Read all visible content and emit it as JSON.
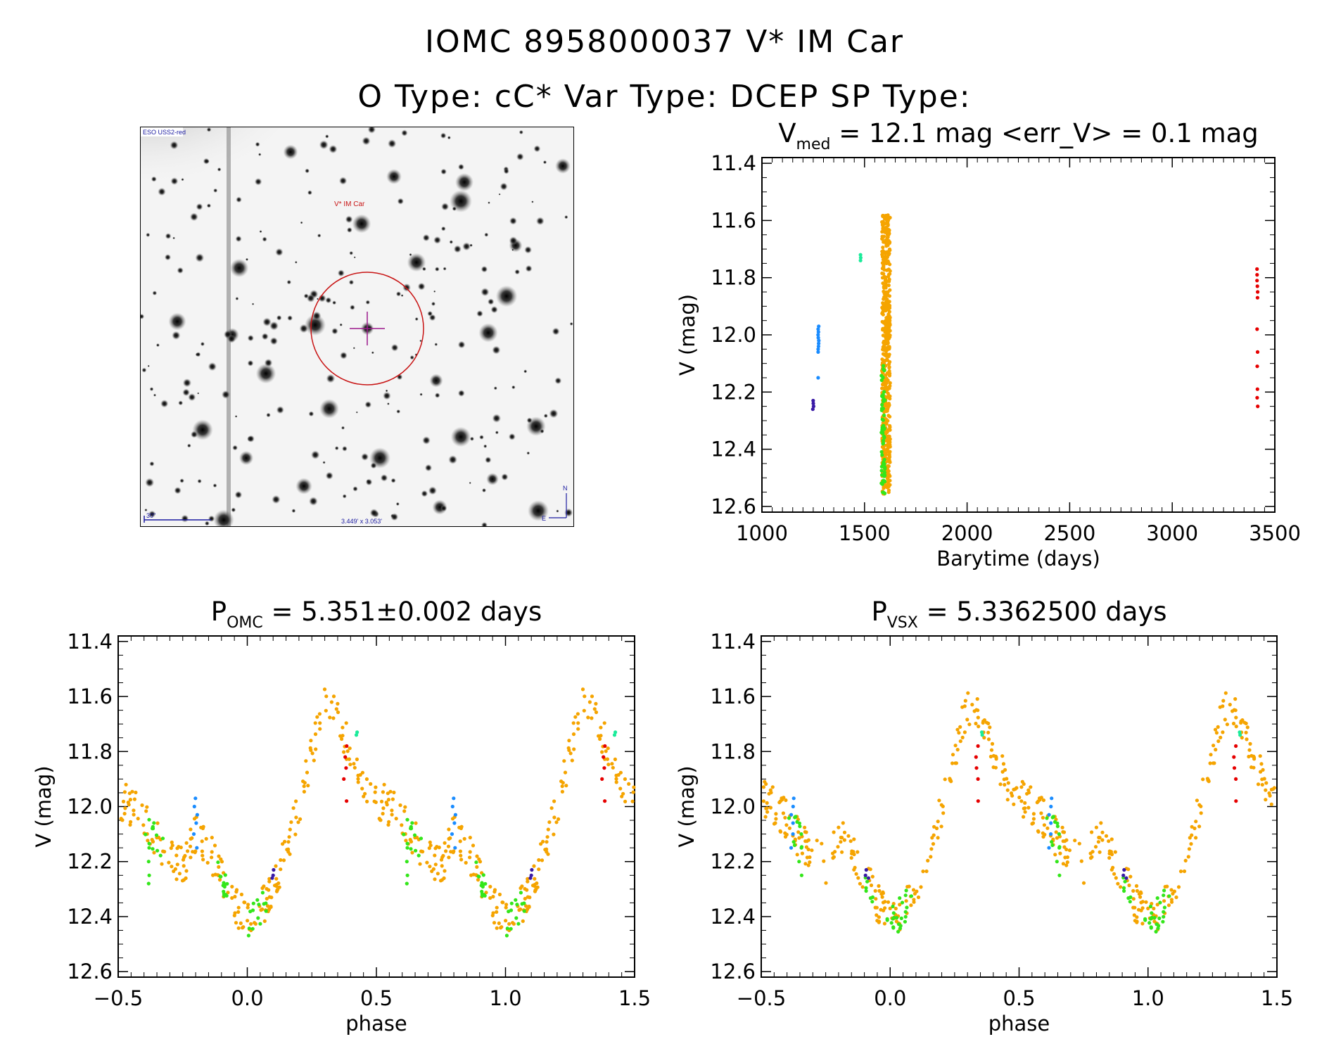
{
  "header": {
    "line1": "IOMC 8958000037   V* IM Car",
    "line2": "O Type: cC*  Var Type: DCEP  SP Type:"
  },
  "finding_chart": {
    "survey_label": "ESO USS2-red",
    "object_label": "V* IM Car",
    "scale_label": "30\"",
    "size_label": "3.449' x 3.053'",
    "north_label": "N",
    "east_label": "E"
  },
  "colors": {
    "orange": "#f5a400",
    "green": "#33e61a",
    "blue": "#1a8cff",
    "red": "#e60000",
    "purple": "#3a1aa6",
    "cyan": "#1aeb9a",
    "circle": "#c81414",
    "crosshair": "#9b1a8c"
  },
  "chart_data": [
    {
      "type": "scatter",
      "title_parts": {
        "p": "V",
        "sub": "med",
        "rest": " = 12.1 mag <err_V> = 0.1 mag"
      },
      "xlabel": "Barytime (days)",
      "ylabel": "V (mag)",
      "xlim": [
        1000,
        3500
      ],
      "ylim": [
        12.62,
        11.38
      ],
      "xticks": [
        1000,
        1500,
        2000,
        2500,
        3000,
        3500
      ],
      "yticks": [
        11.4,
        11.6,
        11.8,
        12.0,
        12.2,
        12.4,
        12.6
      ],
      "grid": false,
      "series": [
        {
          "color": "blue",
          "x": 1275,
          "y": [
            11.97,
            11.98,
            11.99,
            12.0,
            12.01,
            12.02,
            12.03,
            12.04,
            12.05,
            12.06,
            12.15
          ]
        },
        {
          "color": "purple",
          "x": 1250,
          "y": [
            12.23,
            12.24,
            12.25,
            12.26
          ]
        },
        {
          "color": "cyan",
          "x": 1480,
          "y": [
            11.72,
            11.73,
            11.74
          ]
        },
        {
          "color": "red",
          "x": 3415,
          "y": [
            11.77,
            11.79,
            11.81,
            11.83,
            11.85,
            11.87,
            11.98,
            12.06,
            12.11,
            12.19,
            12.22,
            12.25
          ]
        }
      ],
      "band_orange": {
        "x": [
          1585,
          1625
        ],
        "y": [
          11.58,
          12.56
        ]
      },
      "band_green": {
        "x": [
          1582,
          1600
        ],
        "y": [
          12.1,
          12.58
        ]
      }
    },
    {
      "type": "scatter",
      "title_parts": {
        "p": "P",
        "sub": "OMC",
        "rest": " = 5.351±0.002 days"
      },
      "xlabel": "phase",
      "ylabel": "V (mag)",
      "xlim": [
        -0.5,
        1.5
      ],
      "ylim": [
        12.62,
        11.38
      ],
      "xticks": [
        -0.5,
        0.0,
        0.5,
        1.0,
        1.5
      ],
      "xticklabels": [
        "-0.5",
        "0.0",
        "0.5",
        "1.0",
        "1.5"
      ],
      "yticks": [
        11.4,
        11.6,
        11.8,
        12.0,
        12.2,
        12.4,
        12.6
      ],
      "curve": [
        [
          0.0,
          12.42
        ],
        [
          0.05,
          12.38
        ],
        [
          0.1,
          12.3
        ],
        [
          0.15,
          12.15
        ],
        [
          0.2,
          12.0
        ],
        [
          0.25,
          11.8
        ],
        [
          0.3,
          11.63
        ],
        [
          0.35,
          11.68
        ],
        [
          0.4,
          11.8
        ],
        [
          0.45,
          11.9
        ],
        [
          0.5,
          11.97
        ],
        [
          0.55,
          12.0
        ],
        [
          0.6,
          12.05
        ],
        [
          0.65,
          12.12
        ],
        [
          0.7,
          12.17
        ],
        [
          0.75,
          12.22
        ],
        [
          0.8,
          12.1
        ],
        [
          0.85,
          12.15
        ],
        [
          0.9,
          12.25
        ],
        [
          0.95,
          12.35
        ],
        [
          1.0,
          12.42
        ]
      ],
      "groups": [
        {
          "color": "blue",
          "phase": 0.8,
          "y": [
            11.97,
            12.0,
            12.03,
            12.06,
            12.1,
            12.15
          ]
        },
        {
          "color": "green",
          "phase": 0.62,
          "y": [
            12.15,
            12.2,
            12.25,
            12.28
          ]
        },
        {
          "color": "red",
          "phase": 0.38,
          "y": [
            11.78,
            11.82,
            11.86,
            11.9,
            11.98
          ]
        },
        {
          "color": "cyan",
          "phase": 0.42,
          "y": [
            11.73,
            11.74
          ]
        },
        {
          "color": "purple",
          "phase": 0.1,
          "y": [
            12.23,
            12.25,
            12.26
          ]
        }
      ]
    },
    {
      "type": "scatter",
      "title_parts": {
        "p": "P",
        "sub": "VSX",
        "rest": " = 5.3362500 days"
      },
      "xlabel": "phase",
      "ylabel": "V (mag)",
      "xlim": [
        -0.5,
        1.5
      ],
      "ylim": [
        12.62,
        11.38
      ],
      "xticks": [
        -0.5,
        0.0,
        0.5,
        1.0,
        1.5
      ],
      "xticklabels": [
        "-0.5",
        "0.0",
        "0.5",
        "1.0",
        "1.5"
      ],
      "yticks": [
        11.4,
        11.6,
        11.8,
        12.0,
        12.2,
        12.4,
        12.6
      ],
      "curve": [
        [
          0.0,
          12.42
        ],
        [
          0.05,
          12.38
        ],
        [
          0.1,
          12.3
        ],
        [
          0.15,
          12.15
        ],
        [
          0.2,
          12.0
        ],
        [
          0.25,
          11.8
        ],
        [
          0.3,
          11.63
        ],
        [
          0.35,
          11.68
        ],
        [
          0.4,
          11.8
        ],
        [
          0.45,
          11.9
        ],
        [
          0.5,
          11.97
        ],
        [
          0.55,
          12.0
        ],
        [
          0.6,
          12.05
        ],
        [
          0.65,
          12.12
        ],
        [
          0.7,
          12.17
        ],
        [
          0.75,
          12.22
        ],
        [
          0.8,
          12.1
        ],
        [
          0.85,
          12.15
        ],
        [
          0.9,
          12.25
        ],
        [
          0.95,
          12.35
        ],
        [
          1.0,
          12.42
        ]
      ],
      "groups": [
        {
          "color": "blue",
          "phase": 0.62,
          "y": [
            11.97,
            12.0,
            12.03,
            12.06,
            12.1,
            12.15
          ]
        },
        {
          "color": "green",
          "phase": 0.65,
          "y": [
            12.1,
            12.15,
            12.2,
            12.25
          ]
        },
        {
          "color": "red",
          "phase": 0.34,
          "y": [
            11.78,
            11.82,
            11.86,
            11.9,
            11.98
          ]
        },
        {
          "color": "cyan",
          "phase": 0.35,
          "y": [
            11.73,
            11.74
          ]
        },
        {
          "color": "purple",
          "phase": 0.91,
          "y": [
            12.23,
            12.25,
            12.26
          ]
        }
      ]
    }
  ]
}
